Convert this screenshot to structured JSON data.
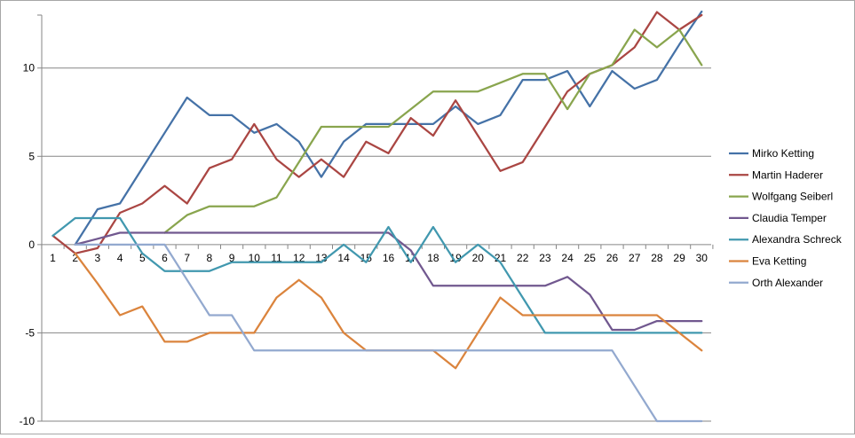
{
  "chart_data": {
    "type": "line",
    "title": "",
    "xlabel": "",
    "ylabel": "",
    "x": [
      1,
      2,
      3,
      4,
      5,
      6,
      7,
      8,
      9,
      10,
      11,
      12,
      13,
      14,
      15,
      16,
      17,
      18,
      19,
      20,
      21,
      22,
      23,
      24,
      25,
      26,
      27,
      28,
      29,
      30
    ],
    "ylim": [
      -10,
      13
    ],
    "yticks": [
      -10,
      -5,
      0,
      5,
      10
    ],
    "grid": true,
    "legend": "right",
    "series": [
      {
        "name": "Mirko Ketting",
        "color": "#4572A7",
        "values": [
          null,
          0,
          2,
          2.33,
          4.33,
          6.33,
          8.33,
          7.33,
          7.33,
          6.33,
          6.83,
          5.83,
          3.83,
          5.83,
          6.83,
          6.83,
          6.83,
          6.83,
          7.83,
          6.83,
          7.33,
          9.33,
          9.33,
          9.83,
          7.83,
          9.83,
          8.83,
          9.33,
          11.33,
          13.2
        ]
      },
      {
        "name": "Martin Haderer",
        "color": "#AA4643",
        "values": [
          0.5,
          -0.5,
          -0.2,
          1.8,
          2.33,
          3.33,
          2.33,
          4.33,
          4.83,
          6.83,
          4.83,
          3.83,
          4.83,
          3.83,
          5.83,
          5.17,
          7.17,
          6.17,
          8.17,
          6.17,
          4.17,
          4.67,
          6.67,
          8.67,
          9.67,
          10.17,
          11.17,
          13.17,
          12.17,
          13.0
        ]
      },
      {
        "name": "Wolfgang Seiberl",
        "color": "#89A54E",
        "values": [
          null,
          null,
          null,
          null,
          null,
          0.67,
          1.67,
          2.17,
          2.17,
          2.17,
          2.67,
          4.67,
          6.67,
          6.67,
          6.67,
          6.67,
          7.67,
          8.67,
          8.67,
          8.67,
          9.17,
          9.67,
          9.67,
          7.67,
          9.67,
          10.17,
          12.17,
          11.17,
          12.17,
          10.17
        ]
      },
      {
        "name": "Claudia Temper",
        "color": "#71588F",
        "values": [
          null,
          0,
          0.33,
          0.67,
          0.67,
          0.67,
          0.67,
          0.67,
          0.67,
          0.67,
          0.67,
          0.67,
          0.67,
          0.67,
          0.67,
          0.67,
          -0.33,
          -2.33,
          -2.33,
          -2.33,
          -2.33,
          -2.33,
          -2.33,
          -1.83,
          -2.83,
          -4.83,
          -4.83,
          -4.33,
          -4.33,
          -4.33
        ]
      },
      {
        "name": "Alexandra Schreck",
        "color": "#4198AF",
        "values": [
          0.5,
          1.5,
          1.5,
          1.5,
          -0.5,
          -1.5,
          -1.5,
          -1.5,
          -1,
          -1,
          -1,
          -1,
          -1,
          0,
          -1,
          1,
          -1,
          1,
          -1,
          0,
          -1,
          -3,
          -5,
          -5,
          -5,
          -5,
          -5,
          -5,
          -5,
          -5
        ]
      },
      {
        "name": "Eva Ketting",
        "color": "#DB843D",
        "values": [
          null,
          -0.5,
          -2.2,
          -4,
          -3.5,
          -5.5,
          -5.5,
          -5,
          -5,
          -5,
          -3,
          -2,
          -3,
          -5,
          -6,
          -6,
          -6,
          -6,
          -7,
          -5,
          -3,
          -4,
          -4,
          -4,
          -4,
          -4,
          -4,
          -4,
          -5,
          -6
        ]
      },
      {
        "name": "Orth Alexander",
        "color": "#93A9CF",
        "values": [
          null,
          0,
          0,
          0,
          0,
          0,
          -2,
          -4,
          -4,
          -6,
          -6,
          -6,
          -6,
          -6,
          -6,
          -6,
          -6,
          -6,
          -6,
          -6,
          -6,
          -6,
          -6,
          -6,
          -6,
          -6,
          -8,
          -10,
          -10,
          -10
        ]
      }
    ]
  }
}
